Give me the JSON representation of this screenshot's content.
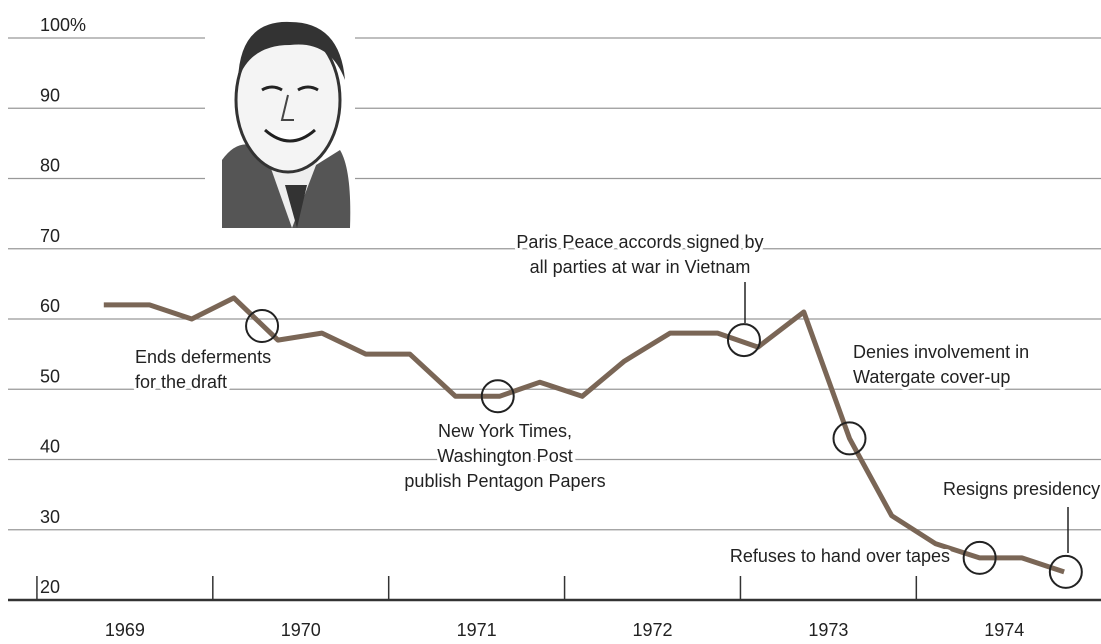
{
  "chart_data": {
    "type": "line",
    "x": [
      1969.38,
      1969.64,
      1969.88,
      1970.12,
      1970.37,
      1970.62,
      1970.87,
      1971.12,
      1971.38,
      1971.63,
      1971.86,
      1972.1,
      1972.34,
      1972.6,
      1972.87,
      1973.1,
      1973.36,
      1973.62,
      1973.86,
      1974.11,
      1974.36,
      1974.6,
      1974.84
    ],
    "values": [
      62,
      62,
      60,
      63,
      57,
      58,
      55,
      55,
      49,
      49,
      51,
      49,
      54,
      58,
      58,
      56,
      61,
      43,
      32,
      28,
      26,
      26,
      24
    ],
    "color": "#7a6656",
    "xlim": [
      1968.79,
      1975.05
    ],
    "xticks": [
      1969,
      1970,
      1971,
      1972,
      1973,
      1974
    ],
    "ylim": [
      20,
      100
    ],
    "yticks": [
      20,
      30,
      40,
      50,
      60,
      70,
      80,
      90,
      {
        "value": 100,
        "label": "100%"
      }
    ],
    "grid": true,
    "events": [
      {
        "x": 1970.28,
        "value": 59,
        "lines": [
          "Ends deferments",
          "for the draft"
        ]
      },
      {
        "x": 1971.62,
        "value": 49,
        "lines": [
          "New York Times,",
          "Washington Post",
          "publish Pentagon Papers"
        ]
      },
      {
        "x": 1973.02,
        "value": 57,
        "lines": [
          "Paris Peace accords signed by",
          "all parties at war in Vietnam"
        ]
      },
      {
        "x": 1973.62,
        "value": 43,
        "lines": [
          "Denies involvement in",
          "Watergate cover-up"
        ]
      },
      {
        "x": 1974.36,
        "value": 26,
        "lines": [
          "Refuses to hand over tapes"
        ]
      },
      {
        "x": 1974.85,
        "value": 24,
        "lines": [
          "Resigns presidency"
        ]
      }
    ]
  }
}
